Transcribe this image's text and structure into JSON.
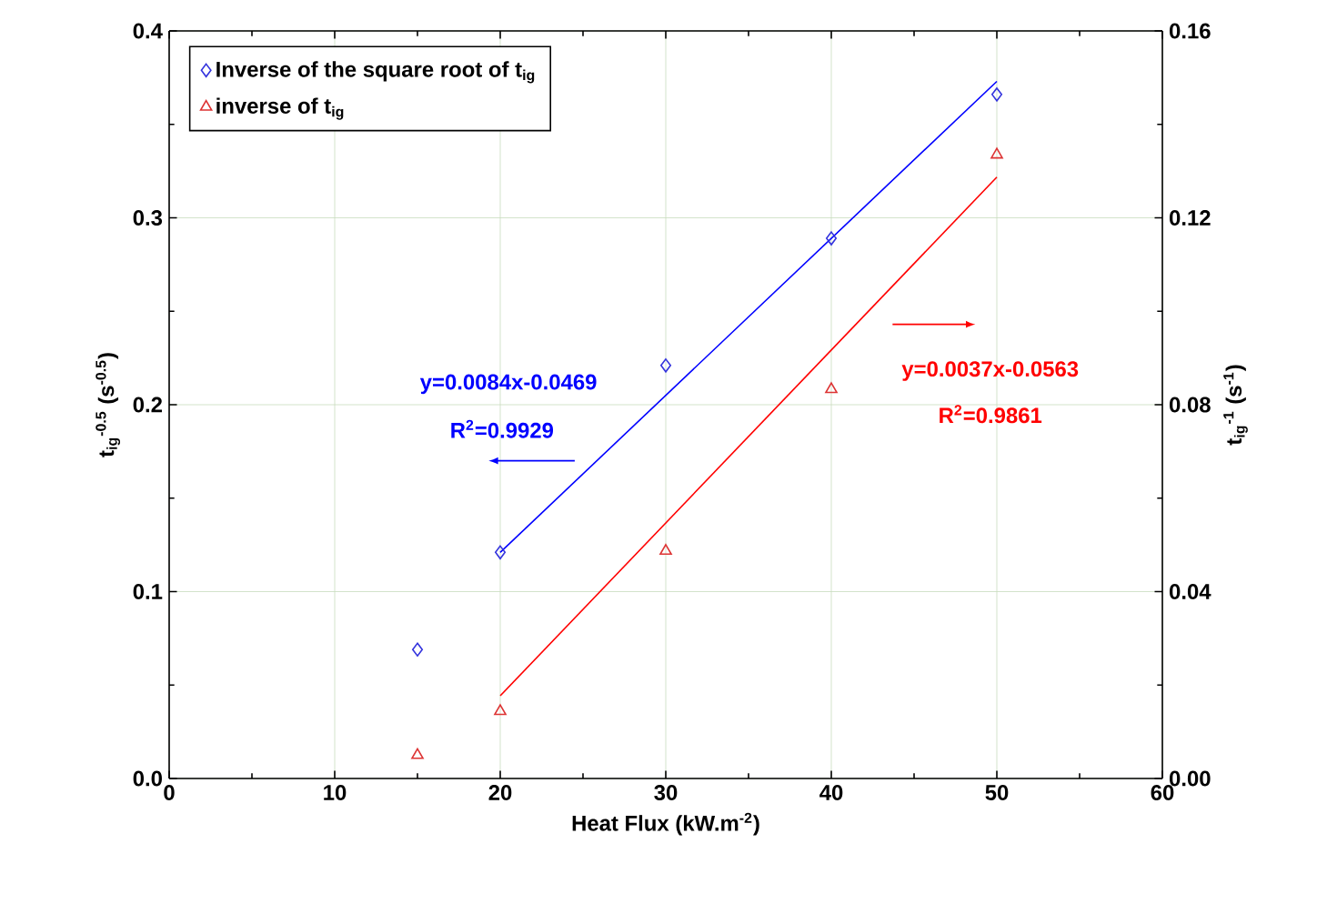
{
  "chart_data": {
    "type": "scatter",
    "xlabel": "Heat Flux (kW.m$^{-2}$)",
    "ylabel": "t$_{ig}$$^{-0.5}$ (s$^{-0.5}$)",
    "y2label": "t$_{ig}$$^{-1}$ (s$^{-1}$)",
    "xlim": [
      0,
      60
    ],
    "xticks": [
      0,
      10,
      20,
      30,
      40,
      50,
      60
    ],
    "ylim": [
      0,
      0.4
    ],
    "yticks": [
      {
        "value": 0,
        "label": "0.0"
      },
      0.1,
      0.2,
      0.3,
      0.4
    ],
    "y2lim": [
      0,
      0.16
    ],
    "y2ticks": [
      {
        "value": 0,
        "label": "0.00"
      },
      0.04,
      0.08,
      0.12,
      0.16
    ],
    "grid": true,
    "legend": "top left",
    "series": [
      {
        "name": "Inverse of the square root of t$_{ig}$",
        "color": "#3333dd",
        "marker": "diamond",
        "x": [
          15,
          20,
          30,
          40,
          50
        ],
        "values": [
          0.069,
          0.121,
          0.221,
          0.289,
          0.366
        ]
      },
      {
        "name": "inverse of t$_{ig}$",
        "color": "#dd3333",
        "marker": "triangle",
        "axis": "y2",
        "x": [
          15,
          20,
          30,
          40,
          50
        ],
        "values": [
          0.005,
          0.0144,
          0.0487,
          0.0833,
          0.1335
        ]
      },
      {
        "type": "line",
        "color": "#0000ff",
        "marker": "none",
        "x": [
          20,
          50
        ],
        "values": [
          0.121,
          0.373
        ]
      },
      {
        "type": "line",
        "color": "#ff0000",
        "marker": "none",
        "axis": "y2",
        "x": [
          20,
          50
        ],
        "values": [
          0.0177,
          0.1287
        ]
      }
    ],
    "annotations": [
      "y=0.0084x-0.0469",
      "R$^{2}$=0.9929",
      "y=0.0037x-0.0563",
      "R$^{2}$=0.9861"
    ]
  }
}
